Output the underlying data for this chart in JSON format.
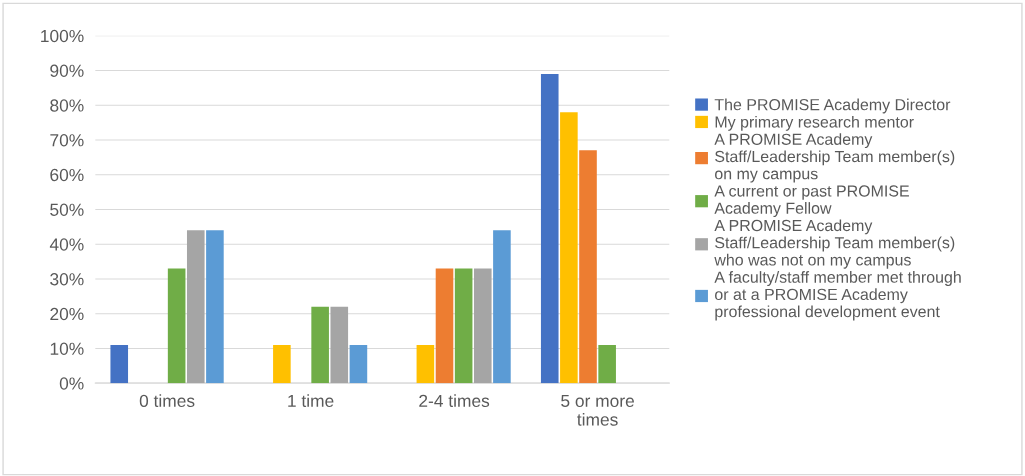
{
  "chart_data": {
    "type": "bar",
    "categories": [
      "0 times",
      "1 time",
      "2-4 times",
      "5 or more\ntimes"
    ],
    "series": [
      {
        "name": "The PROMISE Academy Director",
        "color": "#4472c4",
        "values": [
          11,
          0,
          0,
          89
        ]
      },
      {
        "name": "My primary research mentor",
        "color": "#ffc000",
        "values": [
          0,
          11,
          11,
          78
        ]
      },
      {
        "name": "A PROMISE Academy\nStaff/Leadership Team member(s)\non my campus",
        "color": "#ed7d31",
        "values": [
          0,
          0,
          33,
          67
        ]
      },
      {
        "name": "A current or past PROMISE\nAcademy Fellow",
        "color": "#70ad47",
        "values": [
          33,
          22,
          33,
          11
        ]
      },
      {
        "name": "A PROMISE Academy\nStaff/Leadership Team member(s)\nwho was not on my campus",
        "color": "#a5a5a5",
        "values": [
          44,
          22,
          33,
          0
        ]
      },
      {
        "name": "A faculty/staff member met through\nor at a PROMISE Academy\nprofessional development event",
        "color": "#5b9bd5",
        "values": [
          44,
          11,
          44,
          0
        ]
      }
    ],
    "ylim": [
      0,
      100
    ],
    "yticks": [
      {
        "value": 0,
        "label": "0%"
      },
      {
        "value": 10,
        "label": "10%"
      },
      {
        "value": 20,
        "label": "20%"
      },
      {
        "value": 30,
        "label": "30%"
      },
      {
        "value": 40,
        "label": "40%"
      },
      {
        "value": 50,
        "label": "50%"
      },
      {
        "value": 60,
        "label": "60%"
      },
      {
        "value": 70,
        "label": "70%"
      },
      {
        "value": 80,
        "label": "80%"
      },
      {
        "value": 90,
        "label": "90%"
      },
      {
        "value": 100,
        "label": "100%"
      }
    ],
    "grid": "y",
    "legend": "right"
  }
}
